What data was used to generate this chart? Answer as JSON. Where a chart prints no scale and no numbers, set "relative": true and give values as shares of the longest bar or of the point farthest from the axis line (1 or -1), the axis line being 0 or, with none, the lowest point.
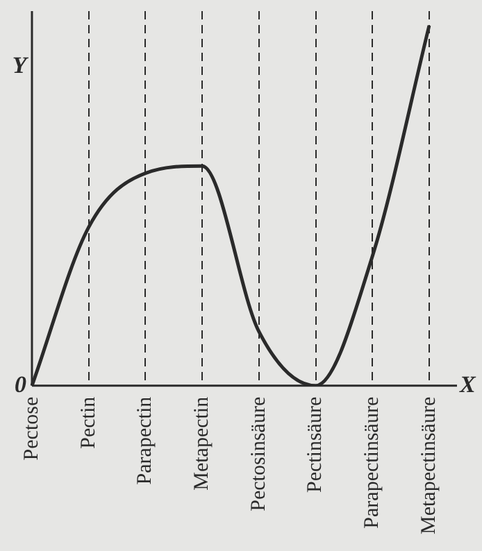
{
  "chart_data": {
    "type": "line",
    "relative": true,
    "xlabel": "X",
    "ylabel": "Y",
    "categories": [
      "Pectose",
      "Pectin",
      "Parapectin",
      "Metapectin",
      "Pectosinsäure",
      "Pectinsäure",
      "Parapectinsäure",
      "Metapectinsäure"
    ],
    "series": [
      {
        "color": "#2a2a2a",
        "values": [
          0,
          0.44,
          0.59,
          0.61,
          0.15,
          0,
          0.36,
          1
        ]
      }
    ],
    "annotations": [
      "0"
    ],
    "grid": "x",
    "line_style": "solid",
    "marker": "none",
    "legend": false
  }
}
